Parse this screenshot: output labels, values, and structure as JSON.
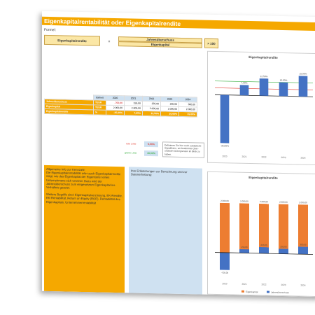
{
  "title": "Eigenkapitalrentabilität oder Eigenkapitalrendite",
  "formel": {
    "label": "Formel:",
    "lhs": "Eigenkapitalrendite",
    "eq": "=",
    "numerator": "Jahresüberschuss",
    "denominator": "Eigenkapital",
    "factor": "× 100"
  },
  "table": {
    "header": [
      "",
      "Einheit",
      "2020",
      "2021",
      "2022",
      "2023",
      "2024"
    ],
    "rows": [
      {
        "label": "Jahresüberschuss",
        "unit": "TEUR",
        "values": [
          "-700,00",
          "150,00",
          "250,00",
          "200,00",
          "300,00"
        ]
      },
      {
        "label": "Eigenkapital",
        "unit": "TEUR",
        "values": [
          "2.000,00",
          "2.000,00",
          "2.000,00",
          "2.000,00",
          "2.000,00"
        ]
      },
      {
        "label": "Eigenkapitalrendite",
        "unit": "%",
        "values": [
          "-35,00%",
          "7,50%",
          "12,50%",
          "10,00%",
          "15,00%"
        ]
      }
    ]
  },
  "limits": {
    "red_label": "rote Linie",
    "red_value": "5,00%",
    "green_label": "grüne Linie",
    "green_value": "10,00%",
    "hint": "Definieren Sie hier noch zusätzliche Signallinien, um bestimmte Ober- und/oder Untergrenzen im Blick zu haben."
  },
  "info_left": {
    "heading": "Allgemeine Info zur Kennzahl:",
    "text": "Die Eigenkapitalrentabilität oder auch Eigenkapitalrendite zeigt, wie das Eigenkapital der Eigentümer eines Unternehmens sich verzinst. Dazu wird der Jahresüberschuss zum eingesetzten Eigenkapital ins Verhältnis gesetzt.",
    "text2": "Weitere Begriffe sind: Eigenkapitalverzinsung, EK-Rendite, EK-Rentabilität, Return on Equity (ROE), Rentabilität des Eigenkapitals, Unternehmerrentabilität"
  },
  "info_right": {
    "text": "Ihre Erläuterungen zur Berechnung und zur Datenerhebung:"
  },
  "chart_data": [
    {
      "type": "bar",
      "title": "Eigenkapitalrendite",
      "categories": [
        "2020",
        "2021",
        "2022",
        "2023",
        "2024"
      ],
      "values": [
        -35.0,
        7.5,
        12.5,
        10.0,
        15.0
      ],
      "data_labels": [
        "-35,00%",
        "7,50%",
        "12,50%",
        "10,00%",
        "15,00%"
      ],
      "ylim": [
        -40,
        20
      ],
      "reference_lines": [
        {
          "name": "rote Linie",
          "value": 5,
          "color": "#e03c31"
        },
        {
          "name": "grüne Linie",
          "value": 10,
          "color": "#3cb043"
        }
      ],
      "colors": {
        "bar": "#4472c4"
      }
    },
    {
      "type": "bar",
      "title": "Eigenkapitalrendite",
      "categories": [
        "2020",
        "2021",
        "2022",
        "2023",
        "2024"
      ],
      "series": [
        {
          "name": "Eigenkapital",
          "values": [
            2000,
            2000,
            2000,
            2000,
            2000
          ],
          "labels": [
            "2.000,00",
            "2.000,00",
            "2.000,00",
            "2.000,00",
            "2.000,00"
          ],
          "color": "#ed7d31"
        },
        {
          "name": "Jahresüberschuss",
          "values": [
            -700,
            150,
            250,
            200,
            300
          ],
          "labels": [
            "-700,00",
            "150,00",
            "250,00",
            "200,00",
            "300,00"
          ],
          "color": "#4472c4"
        }
      ],
      "ylim": [
        -1000,
        2500
      ]
    }
  ]
}
